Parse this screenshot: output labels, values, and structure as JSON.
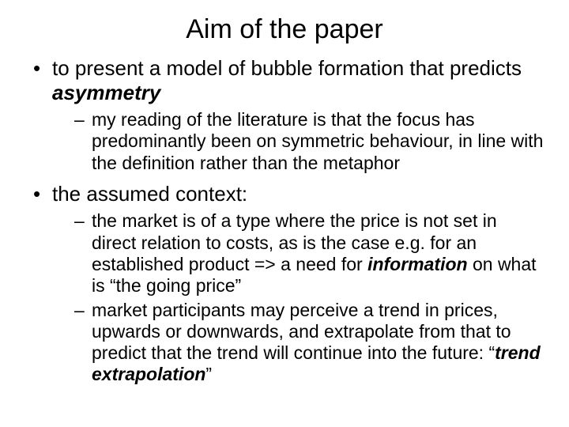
{
  "title": "Aim of the paper",
  "bullets": [
    {
      "pre": "to present a model of bubble formation that predicts ",
      "emph": "asymmetry",
      "post": "",
      "sub": [
        {
          "pre": "my reading of the literature is that the focus has predominantly been on symmetric behaviour, in line with the definition rather than the metaphor",
          "emph": "",
          "post": ""
        }
      ]
    },
    {
      "pre": "the assumed context:",
      "emph": "",
      "post": "",
      "sub": [
        {
          "pre": "the market is of a type where the price is not set in direct relation to costs, as is the case e.g. for an established product => a need for ",
          "emph": "information",
          "post": " on what is “the going price”"
        },
        {
          "pre": "market participants may perceive a trend in prices, upwards or downwards, and extrapolate from that to predict that the trend will continue into the future: “",
          "emph": "trend extrapolation",
          "post": "”"
        }
      ]
    }
  ],
  "style": {
    "background": "#ffffff",
    "text_color": "#000000",
    "title_fontsize": 34,
    "level1_fontsize": 26,
    "level2_fontsize": 23,
    "font_family": "Arial"
  }
}
